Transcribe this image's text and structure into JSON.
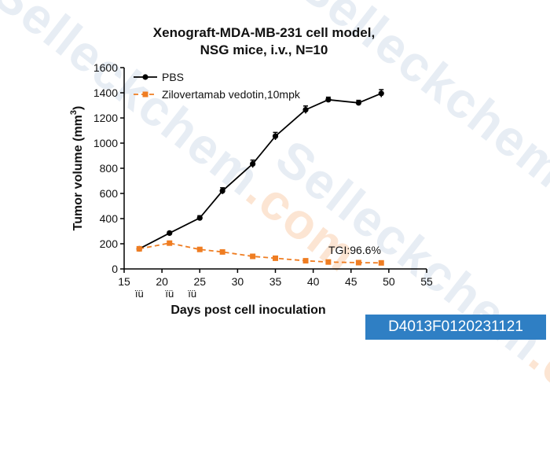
{
  "watermark": {
    "brand": "Selleck",
    "suffix": "chem",
    "tld": ".com"
  },
  "catalog_number": "D4013F0120231121",
  "chart_data": {
    "type": "line",
    "title": [
      "Xenograft-MDA-MB-231 cell model,",
      "NSG mice, i.v., N=10"
    ],
    "xlabel": "Days post cell inoculation",
    "ylabel": "Tumor volume (mm",
    "ylabel_superscript": "3",
    "ylabel_close": ")",
    "xlim": [
      15,
      55
    ],
    "ylim": [
      0,
      1600
    ],
    "xticks": [
      15,
      20,
      25,
      30,
      35,
      40,
      45,
      50,
      55
    ],
    "yticks": [
      0,
      200,
      400,
      600,
      800,
      1000,
      1200,
      1400,
      1600
    ],
    "dosing_days": [
      17,
      21,
      24
    ],
    "dosing_marker": "ïü",
    "annotation": "TGI:96.6%",
    "legend_position": "top-left",
    "series": [
      {
        "name": "PBS",
        "color": "#000000",
        "style": "solid",
        "marker": "circle",
        "x": [
          17,
          21,
          25,
          28,
          32,
          35,
          39,
          42,
          46,
          49
        ],
        "y": [
          160,
          285,
          405,
          620,
          835,
          1055,
          1265,
          1345,
          1320,
          1395
        ],
        "err": [
          10,
          12,
          18,
          25,
          30,
          30,
          30,
          20,
          20,
          30
        ]
      },
      {
        "name": "Zilovertamab vedotin,10mpk",
        "color": "#ef7d22",
        "style": "dashed",
        "marker": "square",
        "x": [
          17,
          21,
          25,
          28,
          32,
          35,
          39,
          42,
          46,
          49
        ],
        "y": [
          160,
          205,
          155,
          135,
          100,
          85,
          65,
          55,
          50,
          48
        ],
        "err": [
          8,
          10,
          10,
          8,
          8,
          8,
          6,
          6,
          5,
          5
        ]
      }
    ]
  }
}
